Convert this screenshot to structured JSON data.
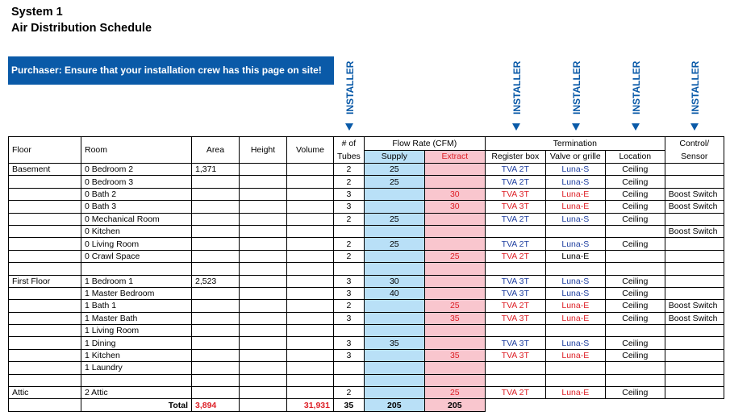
{
  "header": {
    "title": "System 1",
    "subtitle": "Air Distribution Schedule"
  },
  "banner": {
    "text": "Purchaser: Ensure that your installation crew has this page on site!"
  },
  "installer_label": "INSTALLER",
  "colors": {
    "accent": "#0a5aa8",
    "supply": "#b9e0f7",
    "extract": "#f9c6ce",
    "red": "#dd1f26",
    "blue": "#1f3fa0"
  },
  "columns": {
    "floor": "Floor",
    "room": "Room",
    "area": "Area",
    "height": "Height",
    "volume": "Volume",
    "tubes_1": "# of",
    "tubes_2": "Tubes",
    "flow_rate": "Flow Rate (CFM)",
    "supply": "Supply",
    "extract": "Extract",
    "termination": "Termination",
    "register_box": "Register box",
    "valve": "Valve or grille",
    "location": "Location",
    "control_1": "Control/",
    "control_2": "Sensor"
  },
  "rows": [
    {
      "floor": "Basement",
      "room": "0 Bedroom 2",
      "area": "1,371",
      "height": "",
      "volume": "",
      "tubes": "2",
      "supply": "25",
      "extract": "",
      "register": "TVA 2T",
      "valve": "Luna-S",
      "location": "Ceiling",
      "control": ""
    },
    {
      "floor": "",
      "room": "0 Bedroom 3",
      "area": "",
      "height": "",
      "volume": "",
      "tubes": "2",
      "supply": "25",
      "extract": "",
      "register": "TVA 2T",
      "valve": "Luna-S",
      "location": "Ceiling",
      "control": ""
    },
    {
      "floor": "",
      "room": "0 Bath 2",
      "area": "",
      "height": "",
      "volume": "",
      "tubes": "3",
      "supply": "",
      "extract": "30",
      "register": "TVA 3T",
      "valve": "Luna-E",
      "location": "Ceiling",
      "control": "Boost Switch"
    },
    {
      "floor": "",
      "room": "0 Bath 3",
      "area": "",
      "height": "",
      "volume": "",
      "tubes": "3",
      "supply": "",
      "extract": "30",
      "register": "TVA 3T",
      "valve": "Luna-E",
      "location": "Ceiling",
      "control": "Boost Switch"
    },
    {
      "floor": "",
      "room": "0 Mechanical Room",
      "area": "",
      "height": "",
      "volume": "",
      "tubes": "2",
      "supply": "25",
      "extract": "",
      "register": "TVA 2T",
      "valve": "Luna-S",
      "location": "Ceiling",
      "control": ""
    },
    {
      "floor": "",
      "room": "0 Kitchen",
      "area": "",
      "height": "",
      "volume": "",
      "tubes": "",
      "supply": "",
      "extract": "",
      "register": "",
      "valve": "",
      "location": "",
      "control": "Boost Switch"
    },
    {
      "floor": "",
      "room": "0 Living Room",
      "area": "",
      "height": "",
      "volume": "",
      "tubes": "2",
      "supply": "25",
      "extract": "",
      "register": "TVA 2T",
      "valve": "Luna-S",
      "location": "Ceiling",
      "control": ""
    },
    {
      "floor": "",
      "room": "0 Crawl Space",
      "area": "",
      "height": "",
      "volume": "",
      "tubes": "2",
      "supply": "",
      "extract": "25",
      "register": "TVA 2T",
      "valve": "Luna-E",
      "location": "",
      "control": ""
    },
    {
      "floor": "",
      "room": "",
      "area": "",
      "height": "",
      "volume": "",
      "tubes": "",
      "supply": "",
      "extract": "",
      "register": "",
      "valve": "",
      "location": "",
      "control": ""
    },
    {
      "floor": "First Floor",
      "room": "1 Bedroom 1",
      "area": "2,523",
      "height": "",
      "volume": "",
      "tubes": "3",
      "supply": "30",
      "extract": "",
      "register": "TVA 3T",
      "valve": "Luna-S",
      "location": "Ceiling",
      "control": ""
    },
    {
      "floor": "",
      "room": "1 Master Bedroom",
      "area": "",
      "height": "",
      "volume": "",
      "tubes": "3",
      "supply": "40",
      "extract": "",
      "register": "TVA 3T",
      "valve": "Luna-S",
      "location": "Ceiling",
      "control": ""
    },
    {
      "floor": "",
      "room": "1 Bath 1",
      "area": "",
      "height": "",
      "volume": "",
      "tubes": "2",
      "supply": "",
      "extract": "25",
      "register": "TVA 2T",
      "valve": "Luna-E",
      "location": "Ceiling",
      "control": "Boost Switch"
    },
    {
      "floor": "",
      "room": "1 Master Bath",
      "area": "",
      "height": "",
      "volume": "",
      "tubes": "3",
      "supply": "",
      "extract": "35",
      "register": "TVA 3T",
      "valve": "Luna-E",
      "location": "Ceiling",
      "control": "Boost Switch"
    },
    {
      "floor": "",
      "room": "1 Living Room",
      "area": "",
      "height": "",
      "volume": "",
      "tubes": "",
      "supply": "",
      "extract": "",
      "register": "",
      "valve": "",
      "location": "",
      "control": ""
    },
    {
      "floor": "",
      "room": "1 Dining",
      "area": "",
      "height": "",
      "volume": "",
      "tubes": "3",
      "supply": "35",
      "extract": "",
      "register": "TVA 3T",
      "valve": "Luna-S",
      "location": "Ceiling",
      "control": ""
    },
    {
      "floor": "",
      "room": "1 Kitchen",
      "area": "",
      "height": "",
      "volume": "",
      "tubes": "3",
      "supply": "",
      "extract": "35",
      "register": "TVA 3T",
      "valve": "Luna-E",
      "location": "Ceiling",
      "control": ""
    },
    {
      "floor": "",
      "room": "1 Laundry",
      "area": "",
      "height": "",
      "volume": "",
      "tubes": "",
      "supply": "",
      "extract": "",
      "register": "",
      "valve": "",
      "location": "",
      "control": ""
    },
    {
      "floor": "",
      "room": "",
      "area": "",
      "height": "",
      "volume": "",
      "tubes": "",
      "supply": "",
      "extract": "",
      "register": "",
      "valve": "",
      "location": "",
      "control": ""
    },
    {
      "floor": "Attic",
      "room": "2 Attic",
      "area": "",
      "height": "",
      "volume": "",
      "tubes": "2",
      "supply": "",
      "extract": "25",
      "register": "TVA 2T",
      "valve": "Luna-E",
      "location": "Ceiling",
      "control": ""
    }
  ],
  "totals": {
    "label": "Total",
    "area": "3,894",
    "volume": "31,931",
    "tubes": "35",
    "supply": "205",
    "extract": "205"
  }
}
